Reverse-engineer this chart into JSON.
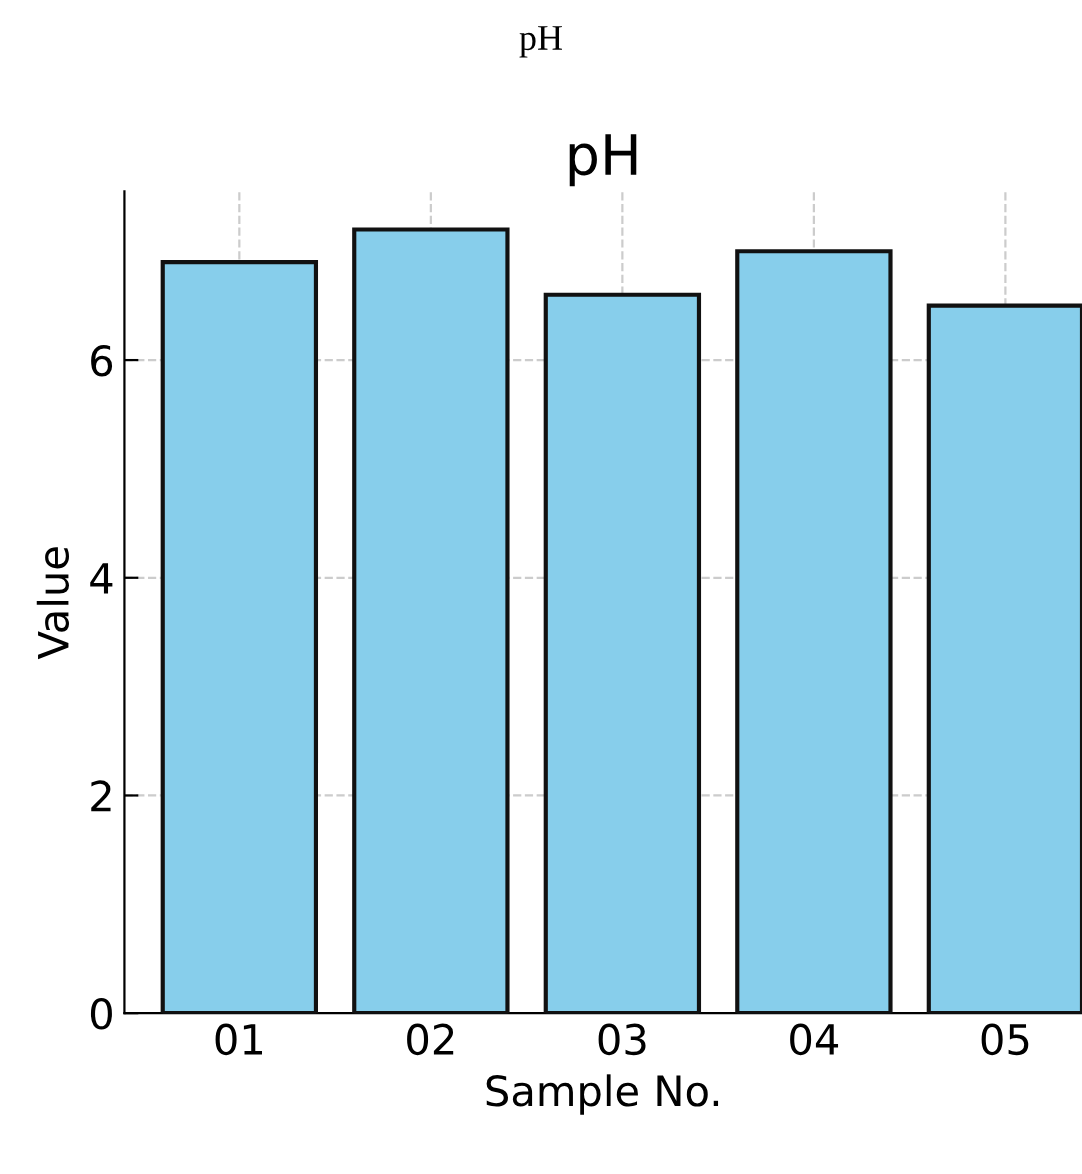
{
  "chart_data": {
    "type": "bar",
    "title": "pH",
    "xlabel": "Sample No.",
    "ylabel": "Value",
    "annotations": [
      "pH"
    ],
    "categories": [
      "01",
      "02",
      "03",
      "04",
      "05"
    ],
    "values": [
      6.9,
      7.2,
      6.6,
      7.0,
      6.5
    ],
    "color": "#87ceeb",
    "ylim": [
      0,
      7.55
    ],
    "yticks": [
      0,
      2,
      4,
      6
    ],
    "grid": true
  }
}
